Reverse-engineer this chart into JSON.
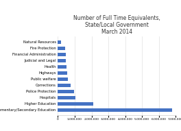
{
  "title": "Number of Full Time Equivalents,\nState/Local Government\nMarch 2014",
  "categories": [
    "Elementary/Secondary Education",
    "Higher Education",
    "Hospitals",
    "Police Protection",
    "Corrections",
    "Public welfare",
    "Highways",
    "Health",
    "Judicial and Legal",
    "Financial Administration",
    "Fire Protection",
    "Natural Resources"
  ],
  "values": [
    6800000,
    2100000,
    1050000,
    950000,
    740000,
    600000,
    560000,
    500000,
    480000,
    460000,
    420000,
    180000
  ],
  "bar_color": "#4472C4",
  "xlim": [
    0,
    7000000
  ],
  "xticks": [
    0,
    1000000,
    2000000,
    3000000,
    4000000,
    5000000,
    6000000,
    7000000
  ],
  "background_color": "#ffffff",
  "title_fontsize": 5.5,
  "label_fontsize": 3.8,
  "tick_fontsize": 3.2,
  "grid_color": "#e0e0e0"
}
